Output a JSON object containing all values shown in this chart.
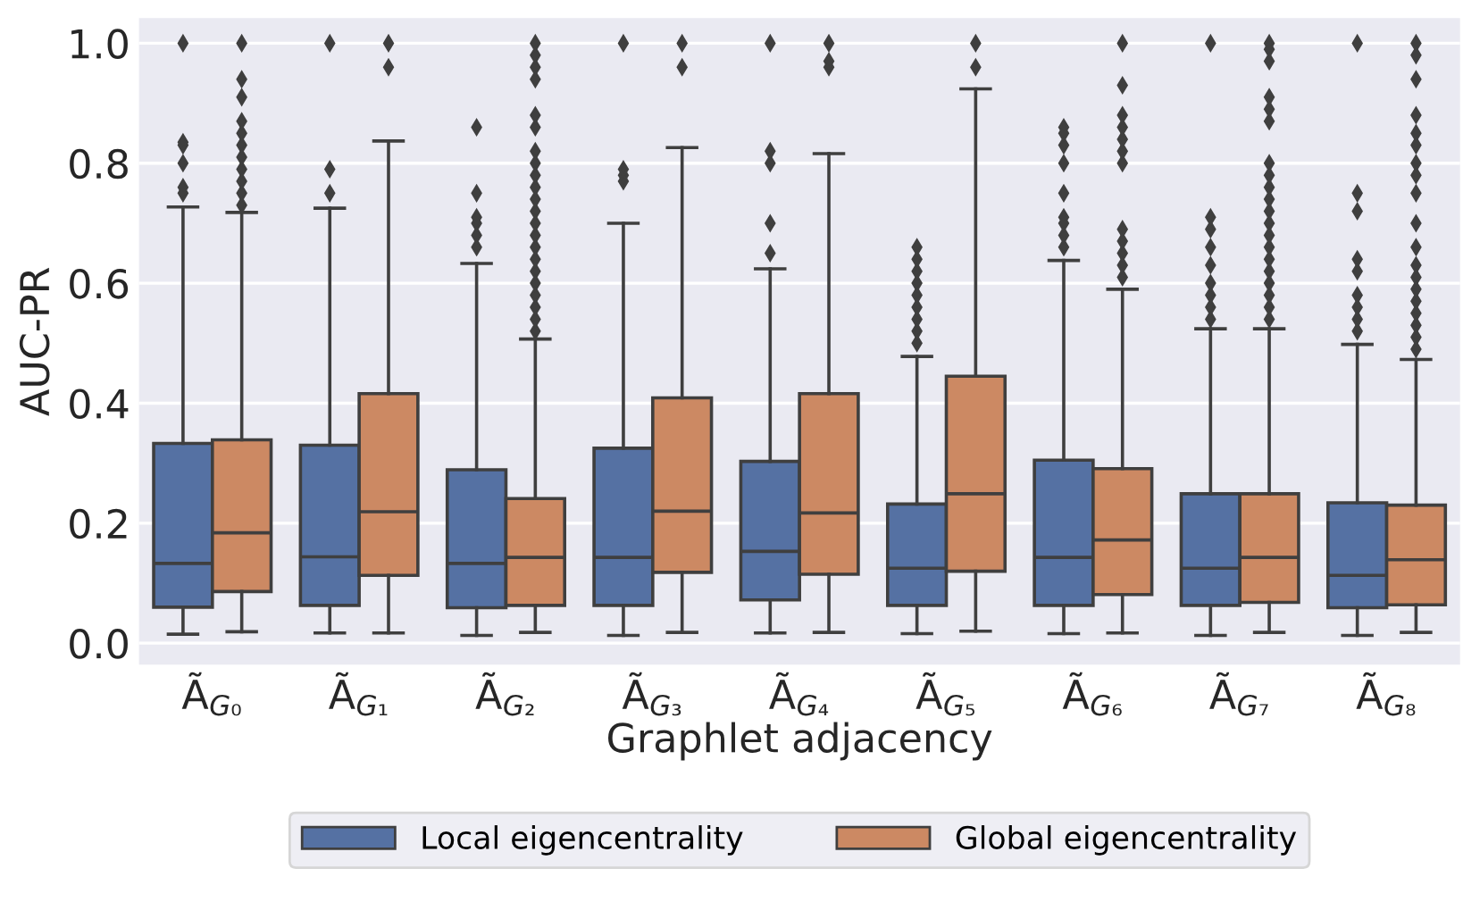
{
  "chart_data": {
    "type": "box",
    "xlabel": "Graphlet adjacency",
    "ylabel": "AUC-PR",
    "categories": [
      "Ã$_{G₀}$",
      "Ã$_{G₁}$",
      "Ã$_{G₂}$",
      "Ã$_{G₃}$",
      "Ã$_{G₄}$",
      "Ã$_{G₅}$",
      "Ã$_{G₆}$",
      "Ã$_{G₇}$",
      "Ã$_{G₈}$"
    ],
    "ylim": [
      -0.036,
      1.042
    ],
    "yticks": [
      {
        "value": 0,
        "label": "0.0"
      },
      0.2,
      0.4,
      0.6,
      0.8,
      {
        "value": 1,
        "label": "1.0"
      }
    ],
    "grid": "y",
    "legend": "bottom",
    "series": [
      {
        "name": "Local eigencentrality",
        "color": "#5571a3",
        "boxes": [
          {
            "low": 0.015,
            "q1": 0.06,
            "median": 0.133,
            "q3": 0.333,
            "high": 0.727,
            "outliers": [
              0.75,
              0.76,
              0.8,
              0.83,
              0.835,
              1.0
            ]
          },
          {
            "low": 0.017,
            "q1": 0.063,
            "median": 0.144,
            "q3": 0.33,
            "high": 0.725,
            "outliers": [
              0.75,
              0.79,
              1.0
            ]
          },
          {
            "low": 0.013,
            "q1": 0.059,
            "median": 0.133,
            "q3": 0.289,
            "high": 0.633,
            "outliers": [
              0.66,
              0.68,
              0.7,
              0.71,
              0.75,
              0.86
            ]
          },
          {
            "low": 0.013,
            "q1": 0.063,
            "median": 0.143,
            "q3": 0.325,
            "high": 0.7,
            "outliers": [
              0.77,
              0.78,
              0.79,
              1.0
            ]
          },
          {
            "low": 0.017,
            "q1": 0.072,
            "median": 0.153,
            "q3": 0.303,
            "high": 0.624,
            "outliers": [
              0.65,
              0.7,
              0.8,
              0.82,
              1.0
            ]
          },
          {
            "low": 0.016,
            "q1": 0.063,
            "median": 0.125,
            "q3": 0.232,
            "high": 0.478,
            "outliers": [
              0.5,
              0.52,
              0.54,
              0.56,
              0.58,
              0.6,
              0.62,
              0.64,
              0.66
            ]
          },
          {
            "low": 0.016,
            "q1": 0.063,
            "median": 0.143,
            "q3": 0.305,
            "high": 0.638,
            "outliers": [
              0.66,
              0.68,
              0.7,
              0.71,
              0.75,
              0.8,
              0.83,
              0.85,
              0.86
            ]
          },
          {
            "low": 0.013,
            "q1": 0.063,
            "median": 0.125,
            "q3": 0.249,
            "high": 0.524,
            "outliers": [
              0.54,
              0.56,
              0.58,
              0.6,
              0.63,
              0.66,
              0.69,
              0.71,
              1.0
            ]
          },
          {
            "low": 0.013,
            "q1": 0.059,
            "median": 0.113,
            "q3": 0.234,
            "high": 0.498,
            "outliers": [
              0.52,
              0.54,
              0.56,
              0.58,
              0.62,
              0.64,
              0.72,
              0.75,
              1.0
            ]
          }
        ]
      },
      {
        "name": "Global eigencentrality",
        "color": "#cc8963",
        "boxes": [
          {
            "low": 0.019,
            "q1": 0.086,
            "median": 0.184,
            "q3": 0.339,
            "high": 0.718,
            "outliers": [
              0.73,
              0.75,
              0.77,
              0.79,
              0.81,
              0.83,
              0.85,
              0.87,
              0.91,
              0.94,
              1.0
            ]
          },
          {
            "low": 0.017,
            "q1": 0.113,
            "median": 0.219,
            "q3": 0.416,
            "high": 0.837,
            "outliers": [
              0.96,
              1.0
            ]
          },
          {
            "low": 0.018,
            "q1": 0.063,
            "median": 0.143,
            "q3": 0.241,
            "high": 0.507,
            "outliers": [
              0.52,
              0.54,
              0.56,
              0.58,
              0.6,
              0.62,
              0.64,
              0.66,
              0.68,
              0.7,
              0.72,
              0.74,
              0.76,
              0.78,
              0.8,
              0.82,
              0.86,
              0.88,
              0.94,
              0.96,
              0.98,
              1.0
            ]
          },
          {
            "low": 0.018,
            "q1": 0.118,
            "median": 0.22,
            "q3": 0.409,
            "high": 0.826,
            "outliers": [
              0.96,
              1.0
            ]
          },
          {
            "low": 0.018,
            "q1": 0.115,
            "median": 0.217,
            "q3": 0.416,
            "high": 0.816,
            "outliers": [
              0.96,
              0.97,
              1.0
            ]
          },
          {
            "low": 0.02,
            "q1": 0.12,
            "median": 0.249,
            "q3": 0.445,
            "high": 0.924,
            "outliers": [
              0.96,
              1.0
            ]
          },
          {
            "low": 0.017,
            "q1": 0.081,
            "median": 0.172,
            "q3": 0.291,
            "high": 0.59,
            "outliers": [
              0.61,
              0.63,
              0.65,
              0.67,
              0.69,
              0.8,
              0.82,
              0.84,
              0.86,
              0.88,
              0.93,
              1.0
            ]
          },
          {
            "low": 0.018,
            "q1": 0.068,
            "median": 0.143,
            "q3": 0.249,
            "high": 0.524,
            "outliers": [
              0.54,
              0.56,
              0.58,
              0.6,
              0.62,
              0.64,
              0.66,
              0.68,
              0.7,
              0.72,
              0.74,
              0.76,
              0.78,
              0.8,
              0.87,
              0.89,
              0.91,
              0.97,
              0.99,
              1.0
            ]
          },
          {
            "low": 0.018,
            "q1": 0.064,
            "median": 0.139,
            "q3": 0.23,
            "high": 0.473,
            "outliers": [
              0.49,
              0.51,
              0.53,
              0.55,
              0.57,
              0.59,
              0.61,
              0.63,
              0.66,
              0.7,
              0.75,
              0.78,
              0.8,
              0.83,
              0.85,
              0.88,
              0.94,
              0.98,
              1.0
            ]
          }
        ]
      }
    ]
  }
}
